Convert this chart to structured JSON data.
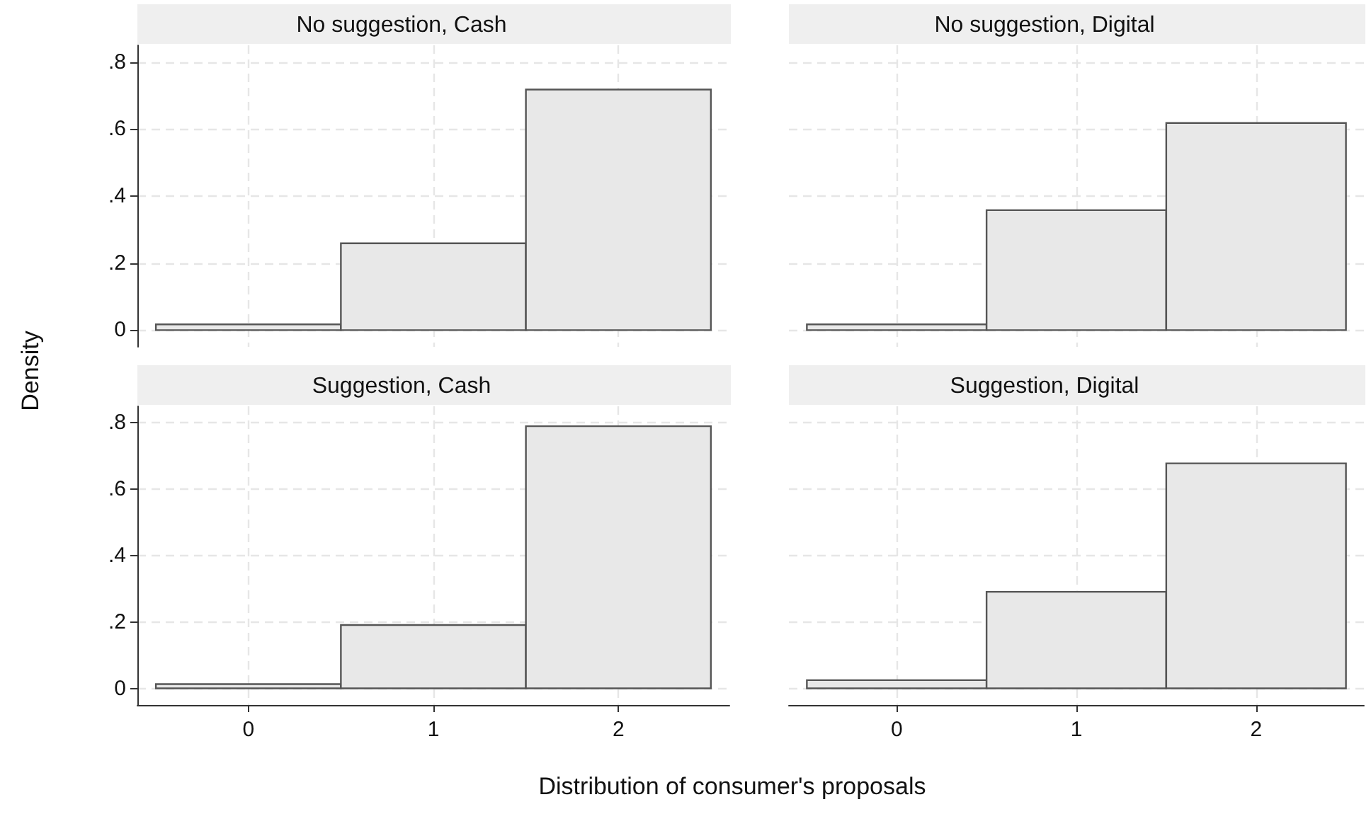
{
  "chart_data": [
    {
      "type": "histogram",
      "title": "No suggestion, Cash",
      "ylabel": "Density",
      "bins": [
        -0.5,
        0.5,
        1.5,
        2.5
      ],
      "values": [
        0.017,
        0.259,
        0.718
      ],
      "color": "#e8e8e8",
      "xlim": [
        -0.6,
        2.6
      ],
      "ylim": [
        -0.05,
        0.85
      ],
      "xticks": [
        0,
        1,
        2
      ],
      "yticks": [
        0,
        {
          "value": 0.2,
          "label": ".2"
        },
        {
          "value": 0.4,
          "label": ".4"
        },
        {
          "value": 0.6,
          "label": ".6"
        },
        {
          "value": 0.8,
          "label": ".8"
        }
      ],
      "grid": true,
      "tick_labels": "y"
    },
    {
      "type": "histogram",
      "title": "No suggestion, Digital",
      "bins": [
        -0.5,
        0.5,
        1.5,
        2.5
      ],
      "values": [
        0.017,
        0.358,
        0.618
      ],
      "color": "#e8e8e8",
      "xlim": [
        -0.6,
        2.6
      ],
      "ylim": [
        -0.05,
        0.85
      ],
      "xticks": [
        0,
        1,
        2
      ],
      "yticks": [
        0,
        0.2,
        0.4,
        0.6,
        0.8
      ],
      "grid": true,
      "tick_labels": false
    },
    {
      "type": "histogram",
      "title": "Suggestion, Cash",
      "xlabel": "Distribution of consumer's proposals",
      "bins": [
        -0.5,
        0.5,
        1.5,
        2.5
      ],
      "values": [
        0.013,
        0.191,
        0.79
      ],
      "color": "#e8e8e8",
      "xlim": [
        -0.6,
        2.6
      ],
      "ylim": [
        -0.05,
        0.85
      ],
      "xticks": [
        0,
        1,
        2
      ],
      "yticks": [
        0,
        {
          "value": 0.2,
          "label": ".2"
        },
        {
          "value": 0.4,
          "label": ".4"
        },
        {
          "value": 0.6,
          "label": ".6"
        },
        {
          "value": 0.8,
          "label": ".8"
        }
      ],
      "grid": true
    },
    {
      "type": "histogram",
      "title": "Suggestion, Digital",
      "bins": [
        -0.5,
        0.5,
        1.5,
        2.5
      ],
      "values": [
        0.025,
        0.291,
        0.678
      ],
      "color": "#e8e8e8",
      "xlim": [
        -0.6,
        2.6
      ],
      "ylim": [
        -0.05,
        0.85
      ],
      "xticks": [
        0,
        1,
        2
      ],
      "yticks": [
        0,
        0.2,
        0.4,
        0.6,
        0.8
      ],
      "grid": true,
      "tick_labels": "x"
    }
  ]
}
